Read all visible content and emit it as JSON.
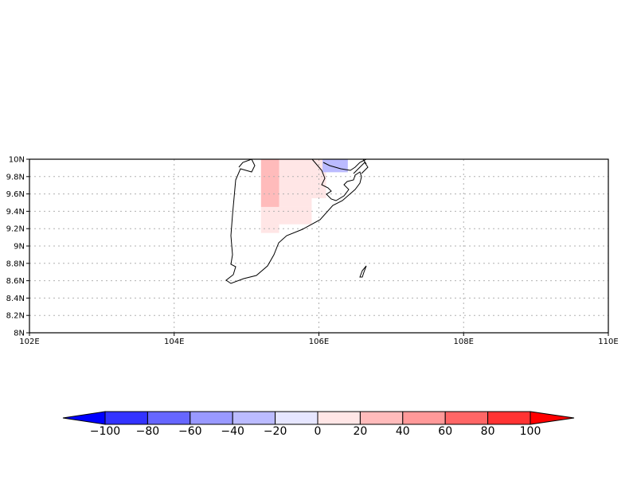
{
  "map": {
    "x_ticks": [
      "102E",
      "104E",
      "106E",
      "108E",
      "110E"
    ],
    "y_ticks": [
      "8N",
      "8.2N",
      "8.4N",
      "8.6N",
      "8.8N",
      "9N",
      "9.2N",
      "9.4N",
      "9.6N",
      "9.8N",
      "10N"
    ],
    "lon_range": [
      102,
      110
    ],
    "lat_range": [
      8,
      10
    ],
    "grid": "dotted",
    "cells": [
      {
        "lon": [
          105.2,
          105.45
        ],
        "lat": [
          9.45,
          10.0
        ],
        "bin": 7
      },
      {
        "lon": [
          105.45,
          105.9
        ],
        "lat": [
          9.45,
          10.0
        ],
        "bin": 6
      },
      {
        "lon": [
          105.9,
          106.1
        ],
        "lat": [
          9.55,
          10.0
        ],
        "bin": 6
      },
      {
        "lon": [
          105.2,
          105.45
        ],
        "lat": [
          9.15,
          9.45
        ],
        "bin": 6
      },
      {
        "lon": [
          105.45,
          105.9
        ],
        "lat": [
          9.25,
          9.45
        ],
        "bin": 6
      },
      {
        "lon": [
          106.05,
          106.4
        ],
        "lat": [
          9.85,
          10.0
        ],
        "bin": 4
      }
    ]
  },
  "colorbar": {
    "labels": [
      "−100",
      "−80",
      "−60",
      "−40",
      "−20",
      "0",
      "20",
      "40",
      "60",
      "80",
      "100"
    ],
    "colors": [
      "#0000ff",
      "#3333ff",
      "#6666ff",
      "#9999ff",
      "#bbbbff",
      "#e6e6ff",
      "#ffe6e6",
      "#ffbbbb",
      "#ff9999",
      "#ff6666",
      "#ff3333",
      "#ff0000"
    ]
  }
}
